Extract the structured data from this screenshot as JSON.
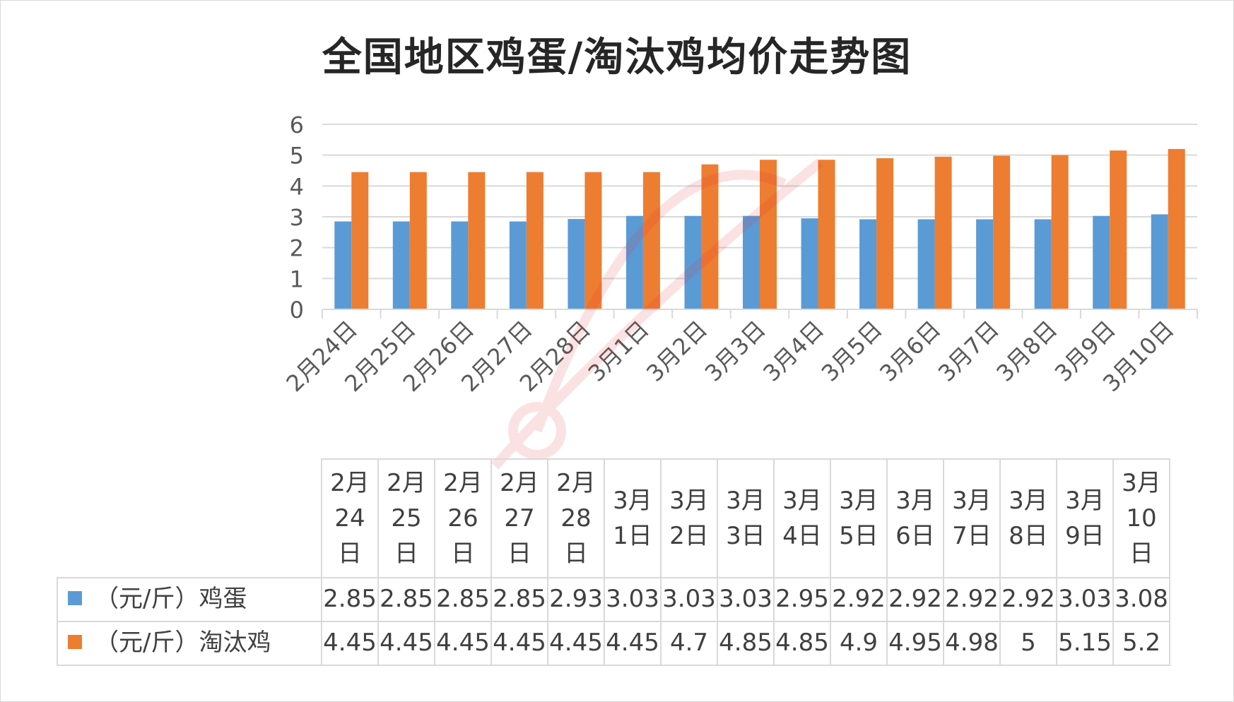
{
  "title": "全国地区鸡蛋/淘汰鸡均价走势图",
  "chart_data": {
    "type": "bar",
    "categories": [
      "2月24日",
      "2月25日",
      "2月26日",
      "2月27日",
      "2月28日",
      "3月1日",
      "3月2日",
      "3月3日",
      "3月4日",
      "3月5日",
      "3月6日",
      "3月7日",
      "3月8日",
      "3月9日",
      "3月10日"
    ],
    "header_lines": [
      [
        "2月",
        "24",
        "日"
      ],
      [
        "2月",
        "25",
        "日"
      ],
      [
        "2月",
        "26",
        "日"
      ],
      [
        "2月",
        "27",
        "日"
      ],
      [
        "2月",
        "28",
        "日"
      ],
      [
        "3月",
        "1日"
      ],
      [
        "3月",
        "2日"
      ],
      [
        "3月",
        "3日"
      ],
      [
        "3月",
        "4日"
      ],
      [
        "3月",
        "5日"
      ],
      [
        "3月",
        "6日"
      ],
      [
        "3月",
        "7日"
      ],
      [
        "3月",
        "8日"
      ],
      [
        "3月",
        "9日"
      ],
      [
        "3月",
        "10",
        "日"
      ]
    ],
    "series": [
      {
        "name": "（元/斤）鸡蛋",
        "color": "#5b9bd5",
        "values": [
          2.85,
          2.85,
          2.85,
          2.85,
          2.93,
          3.03,
          3.03,
          3.03,
          2.95,
          2.92,
          2.92,
          2.92,
          2.92,
          3.03,
          3.08
        ]
      },
      {
        "name": "（元/斤）淘汰鸡",
        "color": "#ed7d31",
        "values": [
          4.45,
          4.45,
          4.45,
          4.45,
          4.45,
          4.45,
          4.7,
          4.85,
          4.85,
          4.9,
          4.95,
          4.98,
          5,
          5.15,
          5.2
        ]
      }
    ],
    "y_ticks": [
      0,
      1,
      2,
      3,
      4,
      5,
      6
    ],
    "ylim": [
      0,
      6
    ],
    "grid": true,
    "legend": "data-table"
  }
}
